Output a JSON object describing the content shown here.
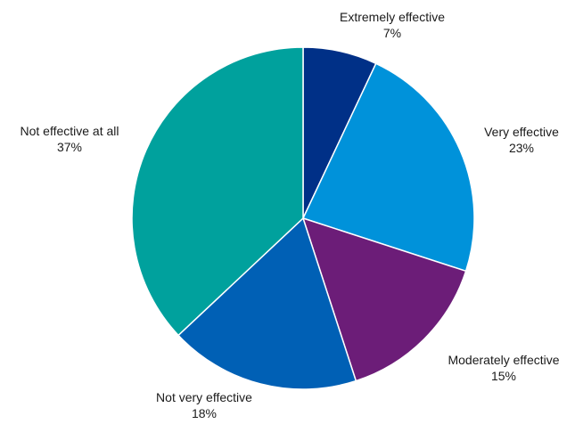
{
  "chart_data": {
    "type": "pie",
    "title": "",
    "series": [
      {
        "category": "Extremely effective",
        "value": 7,
        "label": "7%",
        "color": "#003087"
      },
      {
        "category": "Very effective",
        "value": 23,
        "label": "23%",
        "color": "#0092DA"
      },
      {
        "category": "Moderately effective",
        "value": 15,
        "label": "15%",
        "color": "#6C1D78"
      },
      {
        "category": "Not very effective",
        "value": 18,
        "label": "18%",
        "color": "#0060B5"
      },
      {
        "category": "Not effective at all",
        "value": 37,
        "label": "37%",
        "color": "#00A19D"
      }
    ],
    "start_angle": "12 o'clock",
    "direction": "clockwise",
    "legend": "none",
    "slice_border_color": "#ffffff"
  }
}
